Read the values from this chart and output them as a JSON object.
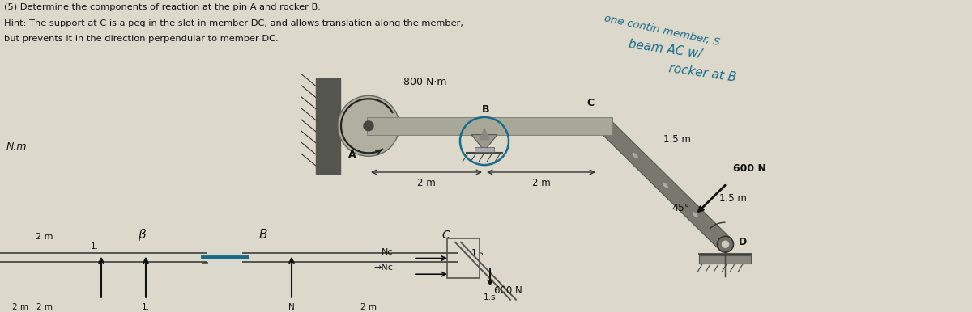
{
  "bg_color": "#ddd8cc",
  "title_line1": "(5) Determine the components of reaction at the pin A and rocker B.",
  "title_line2": "Hint: The support at C is a peg in the slot in member DC, and allows translation along the member,",
  "title_line3": "but prevents it in the direction perpendular to member DC.",
  "hw1": "one contin member, S",
  "hw2": "beam AC w/",
  "hw3": "rocker at B",
  "lbl_800Nm": "800 N·m",
  "lbl_600N": "600 N",
  "lbl_A": "A",
  "lbl_B": "B",
  "lbl_C": "C",
  "lbl_D": "D",
  "lbl_2m_1": "2 m",
  "lbl_2m_2": "2 m",
  "lbl_1p5m_1": "1.5 m",
  "lbl_1p5m_2": "1.5 m",
  "lbl_45": "45°",
  "lbl_Nm": "N.m",
  "lbl_B2": "β",
  "lbl_B3": "B",
  "lbl_2m_bot": "2 m",
  "lbl_Nc1": "Nc",
  "lbl_Nc2": "→Nc",
  "lbl_600N_bot": "600 N",
  "lbl_1s": "1.s",
  "lbl_1p": "1.",
  "lbl_45s": "1.s",
  "beam_color": "#a8a898",
  "beam_dark": "#888880",
  "member_color": "#787870",
  "wall_color": "#555550",
  "text_color": "#111111",
  "blue_color": "#1a6b8a",
  "dim_color": "#333333",
  "arrow_color": "#111111"
}
